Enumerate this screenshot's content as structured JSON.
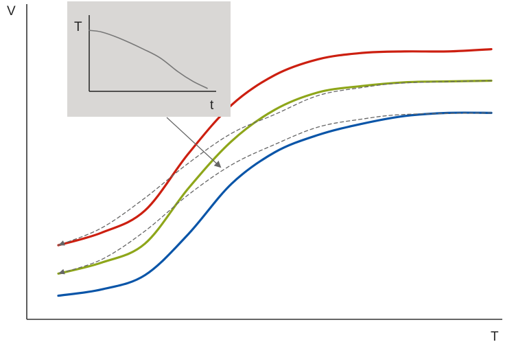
{
  "chart_data": {
    "type": "line",
    "title": "",
    "xlabel": "T",
    "ylabel": "V",
    "grid": false,
    "legend": "none",
    "series": [
      {
        "color": "#cc1f10",
        "style": "solid",
        "points": [
          [
            0.0,
            0.235
          ],
          [
            0.1,
            0.275
          ],
          [
            0.2,
            0.345
          ],
          [
            0.3,
            0.525
          ],
          [
            0.4,
            0.68
          ],
          [
            0.5,
            0.775
          ],
          [
            0.6,
            0.825
          ],
          [
            0.7,
            0.845
          ],
          [
            0.8,
            0.85
          ],
          [
            0.9,
            0.85
          ],
          [
            1.0,
            0.857
          ]
        ]
      },
      {
        "color": "#8ea61a",
        "style": "solid",
        "points": [
          [
            0.0,
            0.145
          ],
          [
            0.1,
            0.18
          ],
          [
            0.2,
            0.24
          ],
          [
            0.3,
            0.415
          ],
          [
            0.4,
            0.565
          ],
          [
            0.5,
            0.665
          ],
          [
            0.6,
            0.72
          ],
          [
            0.7,
            0.74
          ],
          [
            0.8,
            0.752
          ],
          [
            0.9,
            0.755
          ],
          [
            1.0,
            0.757
          ]
        ]
      },
      {
        "color": "#0a55a8",
        "style": "solid",
        "points": [
          [
            0.0,
            0.075
          ],
          [
            0.1,
            0.095
          ],
          [
            0.2,
            0.14
          ],
          [
            0.3,
            0.27
          ],
          [
            0.4,
            0.43
          ],
          [
            0.5,
            0.53
          ],
          [
            0.6,
            0.585
          ],
          [
            0.7,
            0.62
          ],
          [
            0.8,
            0.645
          ],
          [
            0.9,
            0.655
          ],
          [
            1.0,
            0.655
          ]
        ]
      },
      {
        "color": "#666666",
        "style": "dashed",
        "points": [
          [
            1.0,
            0.757
          ],
          [
            0.8,
            0.75
          ],
          [
            0.7,
            0.735
          ],
          [
            0.6,
            0.71
          ],
          [
            0.5,
            0.65
          ],
          [
            0.4,
            0.59
          ],
          [
            0.3,
            0.495
          ],
          [
            0.2,
            0.385
          ],
          [
            0.1,
            0.29
          ],
          [
            0.0,
            0.235
          ]
        ]
      },
      {
        "color": "#666666",
        "style": "dashed",
        "points": [
          [
            1.0,
            0.655
          ],
          [
            0.8,
            0.65
          ],
          [
            0.7,
            0.635
          ],
          [
            0.6,
            0.61
          ],
          [
            0.5,
            0.555
          ],
          [
            0.4,
            0.49
          ],
          [
            0.3,
            0.395
          ],
          [
            0.2,
            0.28
          ],
          [
            0.1,
            0.19
          ],
          [
            0.0,
            0.145
          ]
        ]
      }
    ],
    "inset": {
      "xlabel": "t",
      "ylabel": "T",
      "background": "#d9d7d5",
      "series": [
        {
          "color": "#777777",
          "style": "solid",
          "points": [
            [
              0.0,
              0.8
            ],
            [
              0.1,
              0.78
            ],
            [
              0.25,
              0.7
            ],
            [
              0.45,
              0.56
            ],
            [
              0.6,
              0.44
            ],
            [
              0.75,
              0.26
            ],
            [
              0.88,
              0.13
            ],
            [
              1.0,
              0.04
            ]
          ]
        }
      ]
    }
  }
}
